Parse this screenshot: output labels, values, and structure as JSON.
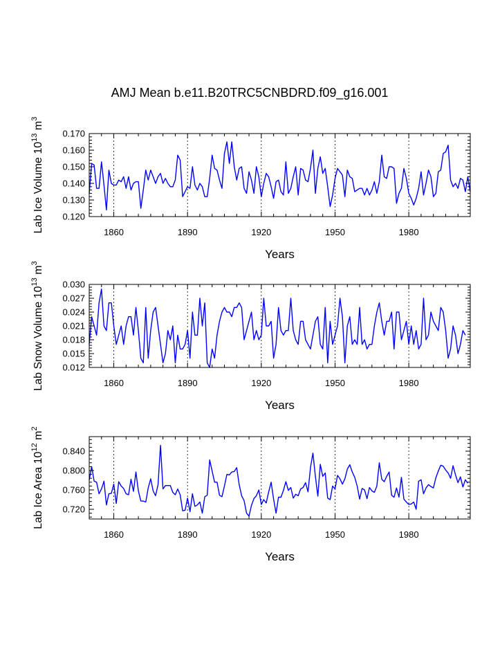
{
  "title": "AMJ Mean b.e11.B20TRC5CNBDRD.f09_g16.001",
  "colors": {
    "series": "#0000ff",
    "axis": "#000000"
  },
  "chart_data": [
    {
      "type": "line",
      "xlabel": "Years",
      "ylabel": {
        "main": "Lab Ice Volume 10",
        "exp": "13",
        "unit": " m",
        "unit_exp": "3"
      },
      "xlim": [
        1850,
        2005
      ],
      "ylim": [
        0.12,
        0.17
      ],
      "xticks": [
        1860,
        1890,
        1920,
        1950,
        1980
      ],
      "yticks": [
        "0.120",
        "0.130",
        "0.140",
        "0.150",
        "0.160",
        "0.170"
      ],
      "grid_x": [
        1860,
        1890,
        1920,
        1950,
        1980
      ],
      "x_start": 1850,
      "values": [
        0.134,
        0.152,
        0.151,
        0.137,
        0.137,
        0.153,
        0.139,
        0.124,
        0.148,
        0.14,
        0.139,
        0.139,
        0.142,
        0.141,
        0.144,
        0.137,
        0.144,
        0.136,
        0.14,
        0.141,
        0.141,
        0.125,
        0.136,
        0.148,
        0.142,
        0.148,
        0.144,
        0.14,
        0.144,
        0.146,
        0.14,
        0.143,
        0.14,
        0.138,
        0.138,
        0.142,
        0.157,
        0.154,
        0.132,
        0.135,
        0.138,
        0.137,
        0.15,
        0.139,
        0.136,
        0.14,
        0.138,
        0.132,
        0.132,
        0.143,
        0.157,
        0.149,
        0.148,
        0.142,
        0.137,
        0.158,
        0.165,
        0.152,
        0.165,
        0.15,
        0.142,
        0.149,
        0.15,
        0.137,
        0.134,
        0.147,
        0.142,
        0.134,
        0.15,
        0.144,
        0.132,
        0.14,
        0.146,
        0.144,
        0.138,
        0.131,
        0.141,
        0.142,
        0.135,
        0.133,
        0.153,
        0.134,
        0.137,
        0.144,
        0.15,
        0.133,
        0.149,
        0.148,
        0.142,
        0.141,
        0.149,
        0.16,
        0.134,
        0.149,
        0.156,
        0.146,
        0.149,
        0.138,
        0.126,
        0.133,
        0.143,
        0.149,
        0.147,
        0.145,
        0.132,
        0.148,
        0.144,
        0.143,
        0.135,
        0.136,
        0.137,
        0.137,
        0.133,
        0.137,
        0.133,
        0.136,
        0.141,
        0.134,
        0.141,
        0.157,
        0.144,
        0.143,
        0.15,
        0.15,
        0.149,
        0.128,
        0.134,
        0.137,
        0.149,
        0.143,
        0.134,
        0.131,
        0.127,
        0.131,
        0.137,
        0.147,
        0.133,
        0.14,
        0.148,
        0.144,
        0.132,
        0.134,
        0.147,
        0.148,
        0.158,
        0.159,
        0.163,
        0.142,
        0.138,
        0.14,
        0.137,
        0.143,
        0.142,
        0.135,
        0.144,
        0.135
      ]
    },
    {
      "type": "line",
      "xlabel": "Years",
      "ylabel": {
        "main": "Lab Snow Volume 10",
        "exp": "13",
        "unit": " m",
        "unit_exp": "3"
      },
      "xlim": [
        1850,
        2005
      ],
      "ylim": [
        0.012,
        0.03
      ],
      "xticks": [
        1860,
        1890,
        1920,
        1950,
        1980
      ],
      "yticks": [
        "0.012",
        "0.015",
        "0.018",
        "0.021",
        "0.024",
        "0.027",
        "0.030"
      ],
      "grid_x": [
        1860,
        1890,
        1920,
        1950,
        1980
      ],
      "x_start": 1850,
      "values": [
        0.017,
        0.023,
        0.021,
        0.019,
        0.026,
        0.029,
        0.021,
        0.02,
        0.026,
        0.026,
        0.021,
        0.017,
        0.019,
        0.021,
        0.017,
        0.021,
        0.023,
        0.023,
        0.019,
        0.025,
        0.02,
        0.014,
        0.013,
        0.025,
        0.014,
        0.02,
        0.024,
        0.025,
        0.021,
        0.017,
        0.013,
        0.015,
        0.02,
        0.018,
        0.021,
        0.013,
        0.019,
        0.016,
        0.016,
        0.017,
        0.02,
        0.014,
        0.024,
        0.019,
        0.019,
        0.027,
        0.021,
        0.026,
        0.013,
        0.012,
        0.016,
        0.014,
        0.019,
        0.022,
        0.024,
        0.025,
        0.024,
        0.024,
        0.023,
        0.025,
        0.025,
        0.026,
        0.025,
        0.018,
        0.02,
        0.022,
        0.024,
        0.018,
        0.02,
        0.018,
        0.019,
        0.027,
        0.021,
        0.021,
        0.022,
        0.014,
        0.017,
        0.025,
        0.02,
        0.019,
        0.02,
        0.02,
        0.027,
        0.02,
        0.018,
        0.017,
        0.022,
        0.022,
        0.018,
        0.017,
        0.016,
        0.019,
        0.022,
        0.023,
        0.017,
        0.016,
        0.025,
        0.013,
        0.022,
        0.017,
        0.019,
        0.021,
        0.027,
        0.023,
        0.013,
        0.021,
        0.023,
        0.017,
        0.018,
        0.017,
        0.025,
        0.017,
        0.018,
        0.016,
        0.017,
        0.017,
        0.021,
        0.024,
        0.026,
        0.022,
        0.019,
        0.022,
        0.022,
        0.024,
        0.016,
        0.024,
        0.024,
        0.018,
        0.02,
        0.022,
        0.017,
        0.021,
        0.017,
        0.02,
        0.016,
        0.017,
        0.027,
        0.018,
        0.019,
        0.024,
        0.022,
        0.021,
        0.02,
        0.025,
        0.024,
        0.02,
        0.014,
        0.016,
        0.021,
        0.019,
        0.015,
        0.017,
        0.02,
        0.019
      ]
    },
    {
      "type": "line",
      "xlabel": "Years",
      "ylabel": {
        "main": "Lab Ice Area 10",
        "exp": "12",
        "unit": " m",
        "unit_exp": "2"
      },
      "xlim": [
        1850,
        2005
      ],
      "ylim": [
        0.7,
        0.87
      ],
      "xticks": [
        1860,
        1890,
        1920,
        1950,
        1980
      ],
      "yticks": [
        "0.720",
        "0.760",
        "0.800",
        "0.840"
      ],
      "ytick_values": [
        0.72,
        0.76,
        0.8,
        0.84
      ],
      "grid_x": [
        1860,
        1890,
        1920,
        1950,
        1980
      ],
      "x_start": 1850,
      "values": [
        0.78,
        0.808,
        0.778,
        0.776,
        0.752,
        0.762,
        0.778,
        0.729,
        0.752,
        0.753,
        0.772,
        0.732,
        0.777,
        0.768,
        0.763,
        0.752,
        0.75,
        0.782,
        0.757,
        0.797,
        0.758,
        0.737,
        0.737,
        0.735,
        0.764,
        0.783,
        0.758,
        0.748,
        0.771,
        0.852,
        0.762,
        0.769,
        0.769,
        0.769,
        0.755,
        0.75,
        0.762,
        0.75,
        0.717,
        0.718,
        0.743,
        0.715,
        0.752,
        0.726,
        0.729,
        0.735,
        0.712,
        0.746,
        0.749,
        0.822,
        0.799,
        0.776,
        0.776,
        0.749,
        0.746,
        0.768,
        0.792,
        0.791,
        0.797,
        0.798,
        0.806,
        0.771,
        0.748,
        0.738,
        0.712,
        0.706,
        0.728,
        0.742,
        0.748,
        0.76,
        0.73,
        0.74,
        0.733,
        0.756,
        0.776,
        0.741,
        0.712,
        0.745,
        0.745,
        0.759,
        0.777,
        0.759,
        0.765,
        0.743,
        0.751,
        0.748,
        0.762,
        0.765,
        0.775,
        0.756,
        0.806,
        0.836,
        0.788,
        0.747,
        0.813,
        0.788,
        0.795,
        0.743,
        0.74,
        0.768,
        0.762,
        0.79,
        0.783,
        0.772,
        0.783,
        0.803,
        0.812,
        0.797,
        0.786,
        0.768,
        0.741,
        0.763,
        0.76,
        0.742,
        0.765,
        0.758,
        0.755,
        0.768,
        0.816,
        0.782,
        0.777,
        0.788,
        0.797,
        0.749,
        0.745,
        0.764,
        0.745,
        0.786,
        0.741,
        0.735,
        0.73,
        0.731,
        0.735,
        0.72,
        0.778,
        0.781,
        0.752,
        0.764,
        0.771,
        0.767,
        0.764,
        0.785,
        0.799,
        0.811,
        0.809,
        0.801,
        0.795,
        0.784,
        0.81,
        0.791,
        0.775,
        0.787,
        0.766,
        0.781,
        0.774
      ]
    }
  ]
}
